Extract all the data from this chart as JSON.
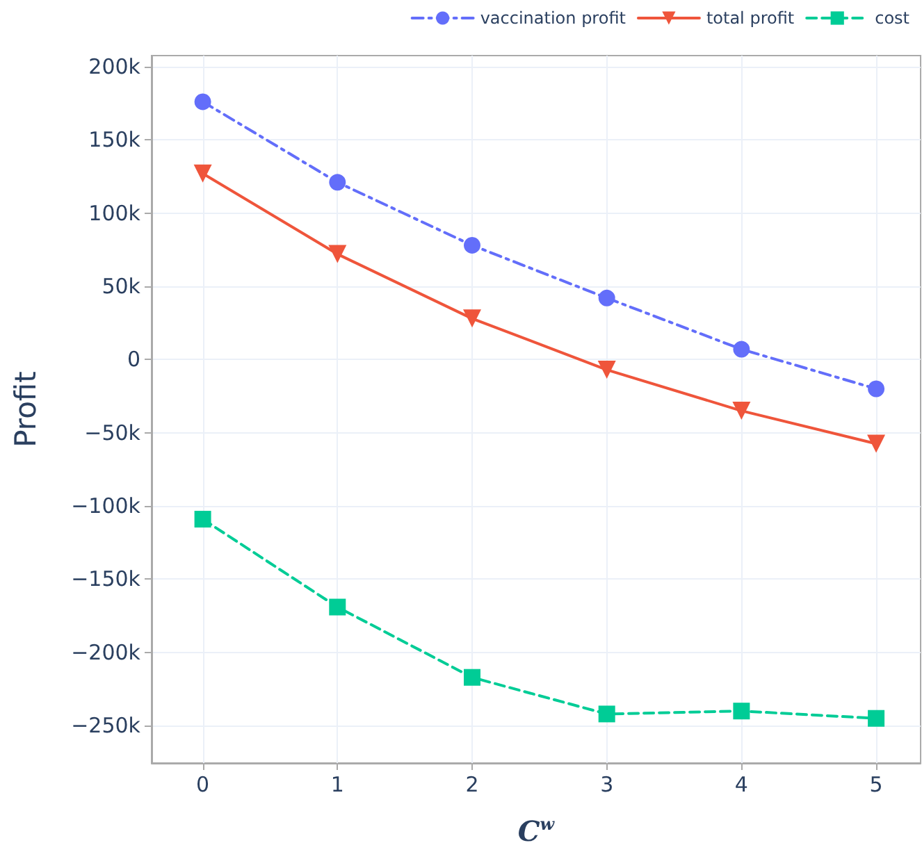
{
  "chart_data": {
    "type": "line",
    "xlabel": "C$^{w}$",
    "ylabel": "Profit",
    "x": [
      0,
      1,
      2,
      3,
      4,
      5
    ],
    "series": [
      {
        "name": "vaccination profit",
        "color": "#636efa",
        "marker": "circle",
        "line_style": "dashdot",
        "values": [
          176000,
          121000,
          78000,
          42000,
          7000,
          -20000
        ]
      },
      {
        "name": "total profit",
        "color": "#ef553b",
        "marker": "triangle-down",
        "line_style": "solid",
        "values": [
          127000,
          72000,
          28000,
          -7000,
          -35000,
          -57500
        ]
      },
      {
        "name": "cost",
        "color": "#00cc96",
        "marker": "square",
        "line_style": "dashed",
        "values": [
          -109000,
          -169000,
          -217000,
          -242000,
          -240000,
          -245000
        ]
      }
    ],
    "xlim": [
      -0.38,
      5.33
    ],
    "xticks": [
      0,
      1,
      2,
      3,
      4,
      5
    ],
    "ylim": [
      -275500,
      207500
    ],
    "yticks": [
      {
        "value": -250000,
        "label": "−250k"
      },
      {
        "value": -200000,
        "label": "−200k"
      },
      {
        "value": -150000,
        "label": "−150k"
      },
      {
        "value": -100000,
        "label": "−100k"
      },
      {
        "value": -50000,
        "label": "−50k"
      },
      {
        "value": 0,
        "label": "0"
      },
      {
        "value": 50000,
        "label": "50k"
      },
      {
        "value": 100000,
        "label": "100k"
      },
      {
        "value": 150000,
        "label": "150k"
      },
      {
        "value": 200000,
        "label": "200k"
      }
    ],
    "grid": true,
    "legend": "top right"
  }
}
